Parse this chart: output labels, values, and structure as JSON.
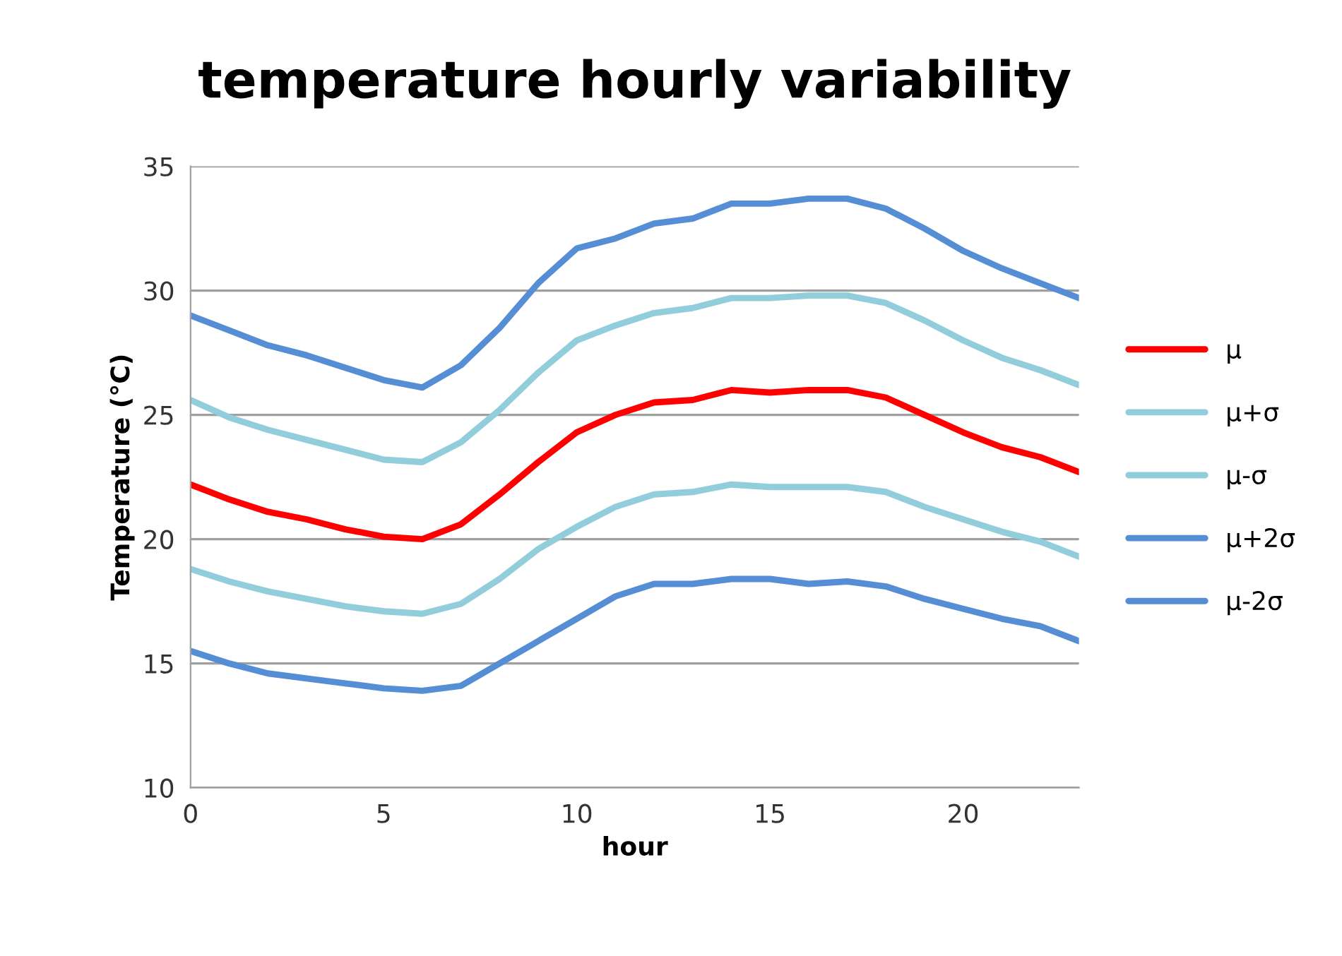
{
  "chart_data": {
    "type": "line",
    "title": "temperature hourly variability",
    "xlabel": "hour",
    "ylabel": "Temperature (°C)",
    "x": [
      0,
      1,
      2,
      3,
      4,
      5,
      6,
      7,
      8,
      9,
      10,
      11,
      12,
      13,
      14,
      15,
      16,
      17,
      18,
      19,
      20,
      21,
      22,
      23
    ],
    "xlim": [
      0,
      23
    ],
    "xticks": [
      0,
      5,
      10,
      15,
      20
    ],
    "ylim": [
      10,
      35
    ],
    "yticks": [
      10,
      15,
      20,
      25,
      30,
      35
    ],
    "grid": "y",
    "legend": "right",
    "marker": "none",
    "line_style": "solid",
    "series": [
      {
        "name": "μ",
        "color": "#ff0000",
        "values": [
          22.2,
          21.6,
          21.1,
          20.8,
          20.4,
          20.1,
          20.0,
          20.6,
          21.8,
          23.1,
          24.3,
          25.0,
          25.5,
          25.6,
          26.0,
          25.9,
          26.0,
          26.0,
          25.7,
          25.0,
          24.3,
          23.7,
          23.3,
          22.7
        ]
      },
      {
        "name": "μ+σ",
        "color": "#92cddc",
        "values": [
          25.6,
          24.9,
          24.4,
          24.0,
          23.6,
          23.2,
          23.1,
          23.9,
          25.2,
          26.7,
          28.0,
          28.6,
          29.1,
          29.3,
          29.7,
          29.7,
          29.8,
          29.8,
          29.5,
          28.8,
          28.0,
          27.3,
          26.8,
          26.2
        ]
      },
      {
        "name": "μ-σ",
        "color": "#92cddc",
        "values": [
          18.8,
          18.3,
          17.9,
          17.6,
          17.3,
          17.1,
          17.0,
          17.4,
          18.4,
          19.6,
          20.5,
          21.3,
          21.8,
          21.9,
          22.2,
          22.1,
          22.1,
          22.1,
          21.9,
          21.3,
          20.8,
          20.3,
          19.9,
          19.3
        ]
      },
      {
        "name": "μ+2σ",
        "color": "#558ed5",
        "values": [
          29.0,
          28.4,
          27.8,
          27.4,
          26.9,
          26.4,
          26.1,
          27.0,
          28.5,
          30.3,
          31.7,
          32.1,
          32.7,
          32.9,
          33.5,
          33.5,
          33.7,
          33.7,
          33.3,
          32.5,
          31.6,
          30.9,
          30.3,
          29.7
        ]
      },
      {
        "name": "μ-2σ",
        "color": "#558ed5",
        "values": [
          15.5,
          15.0,
          14.6,
          14.4,
          14.2,
          14.0,
          13.9,
          14.1,
          15.0,
          15.9,
          16.8,
          17.7,
          18.2,
          18.2,
          18.4,
          18.4,
          18.2,
          18.3,
          18.1,
          17.6,
          17.2,
          16.8,
          16.5,
          15.9
        ]
      }
    ]
  }
}
